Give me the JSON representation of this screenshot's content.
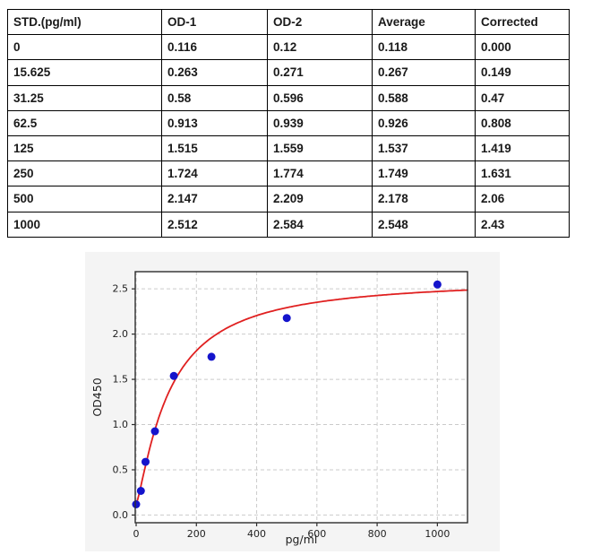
{
  "table": {
    "columns": [
      "STD.(pg/ml)",
      "OD-1",
      "OD-2",
      "Average",
      "Corrected"
    ],
    "rows": [
      [
        "0",
        "0.116",
        "0.12",
        "0.118",
        "0.000"
      ],
      [
        "15.625",
        "0.263",
        "0.271",
        "0.267",
        "0.149"
      ],
      [
        "31.25",
        "0.58",
        "0.596",
        "0.588",
        "0.47"
      ],
      [
        "62.5",
        "0.913",
        "0.939",
        "0.926",
        "0.808"
      ],
      [
        "125",
        "1.515",
        "1.559",
        "1.537",
        "1.419"
      ],
      [
        "250",
        "1.724",
        "1.774",
        "1.749",
        "1.631"
      ],
      [
        "500",
        "2.147",
        "2.209",
        "2.178",
        "2.06"
      ],
      [
        "1000",
        "2.512",
        "2.584",
        "2.548",
        "2.43"
      ]
    ]
  },
  "chart_data": {
    "type": "scatter",
    "title": "",
    "xlabel": "pg/ml",
    "ylabel": "OD450",
    "xlim": [
      -3,
      1100
    ],
    "ylim": [
      -0.085,
      2.69
    ],
    "x_ticks": [
      0,
      200,
      400,
      600,
      800,
      1000
    ],
    "y_ticks": [
      "0.0",
      "0.5",
      "1.0",
      "1.5",
      "2.0",
      "2.5"
    ],
    "grid": "dashed",
    "legend": "none",
    "series": [
      {
        "name": "standard-points",
        "type": "scatter",
        "color": "#1414cc",
        "x": [
          0,
          15.625,
          31.25,
          62.5,
          125,
          250,
          500,
          1000
        ],
        "y": [
          0.118,
          0.267,
          0.588,
          0.926,
          1.537,
          1.749,
          2.178,
          2.548
        ]
      },
      {
        "name": "fit-curve",
        "type": "line",
        "color": "#e02020",
        "fit": {
          "model": "4PL",
          "a": 0.118,
          "b": 1.25,
          "c": 110,
          "d": 2.62
        },
        "x_range": [
          0,
          1100
        ]
      }
    ],
    "colors": {
      "figure_bg": "#f4f4f4",
      "plot_bg": "#ffffff",
      "grid": "#cbcbcb",
      "spine": "#2d2d2d",
      "tick_label": "#1f1f1f"
    }
  }
}
